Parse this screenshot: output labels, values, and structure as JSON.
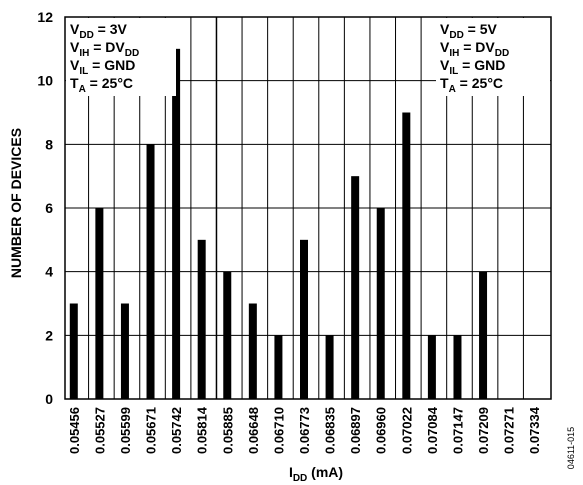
{
  "chart_data": {
    "type": "bar",
    "ylabel": "NUMBER OF DEVICES",
    "xlabel": {
      "main": "I",
      "sub": "DD",
      "unit": " (mA)"
    },
    "ylim": [
      0,
      12
    ],
    "yticks": [
      "0",
      "2",
      "4",
      "6",
      "8",
      "10",
      "12"
    ],
    "grid": true,
    "figure_id": "04611-015",
    "panels": [
      {
        "conditions": [
          {
            "main": "V",
            "sub": "DD",
            "rest": " = 3V"
          },
          {
            "main": "V",
            "sub": "IH",
            "rest": "  = DV",
            "sub2": "DD"
          },
          {
            "main": "V",
            "sub": "IL",
            "rest": " = GND"
          },
          {
            "main": "T",
            "sub": "A",
            "rest": " = 25°C"
          }
        ],
        "bars": [
          {
            "x": "0.05456",
            "value": 3
          },
          {
            "x": "0.05527",
            "value": 6
          },
          {
            "x": "0.05599",
            "value": 3
          },
          {
            "x": "0.05671",
            "value": 8
          },
          {
            "x": "0.05742",
            "value": 11
          },
          {
            "x": "0.05814",
            "value": 5
          }
        ]
      },
      {
        "conditions": [
          {
            "main": "V",
            "sub": "DD",
            "rest": " = 5V"
          },
          {
            "main": "V",
            "sub": "IH",
            "rest": "  = DV",
            "sub2": "DD"
          },
          {
            "main": "V",
            "sub": "IL",
            "rest": " = GND"
          },
          {
            "main": "T",
            "sub": "A",
            "rest": " = 25°C"
          }
        ],
        "bars": [
          {
            "x": "0.05885",
            "value": 4
          },
          {
            "x": "0.06648",
            "value": 3
          },
          {
            "x": "0.06710",
            "value": 2
          },
          {
            "x": "0.06773",
            "value": 5
          },
          {
            "x": "0.06835",
            "value": 2
          },
          {
            "x": "0.06897",
            "value": 7
          },
          {
            "x": "0.06960",
            "value": 6
          },
          {
            "x": "0.07022",
            "value": 9
          },
          {
            "x": "0.07084",
            "value": 2
          },
          {
            "x": "0.07147",
            "value": 2
          },
          {
            "x": "0.07209",
            "value": 4
          },
          {
            "x": "0.07271",
            "value": 0
          },
          {
            "x": "0.07334",
            "value": 0
          }
        ]
      }
    ]
  }
}
